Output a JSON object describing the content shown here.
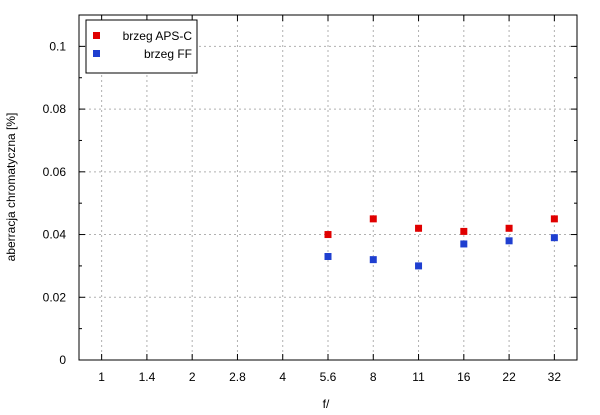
{
  "chart_data": {
    "type": "scatter",
    "categories": [
      "1",
      "1.4",
      "2",
      "2.8",
      "4",
      "5.6",
      "8",
      "11",
      "16",
      "22",
      "32"
    ],
    "yticks": [
      "0",
      "0.02",
      "0.04",
      "0.06",
      "0.08",
      "0.1"
    ],
    "ylim": [
      0,
      0.11
    ],
    "xlabel": "f/",
    "ylabel": "aberracja chromatyczna [%]",
    "grid": true,
    "legend_position": "top-left",
    "series": [
      {
        "name": "brzeg APS-C",
        "color": "#e00000",
        "x": [
          "5.6",
          "8",
          "11",
          "16",
          "22",
          "32"
        ],
        "values": [
          0.04,
          0.045,
          0.042,
          0.041,
          0.042,
          0.045
        ]
      },
      {
        "name": "brzeg FF",
        "color": "#1f3fd0",
        "x": [
          "5.6",
          "8",
          "11",
          "16",
          "22",
          "32"
        ],
        "values": [
          0.033,
          0.032,
          0.03,
          0.037,
          0.038,
          0.039
        ]
      }
    ]
  }
}
